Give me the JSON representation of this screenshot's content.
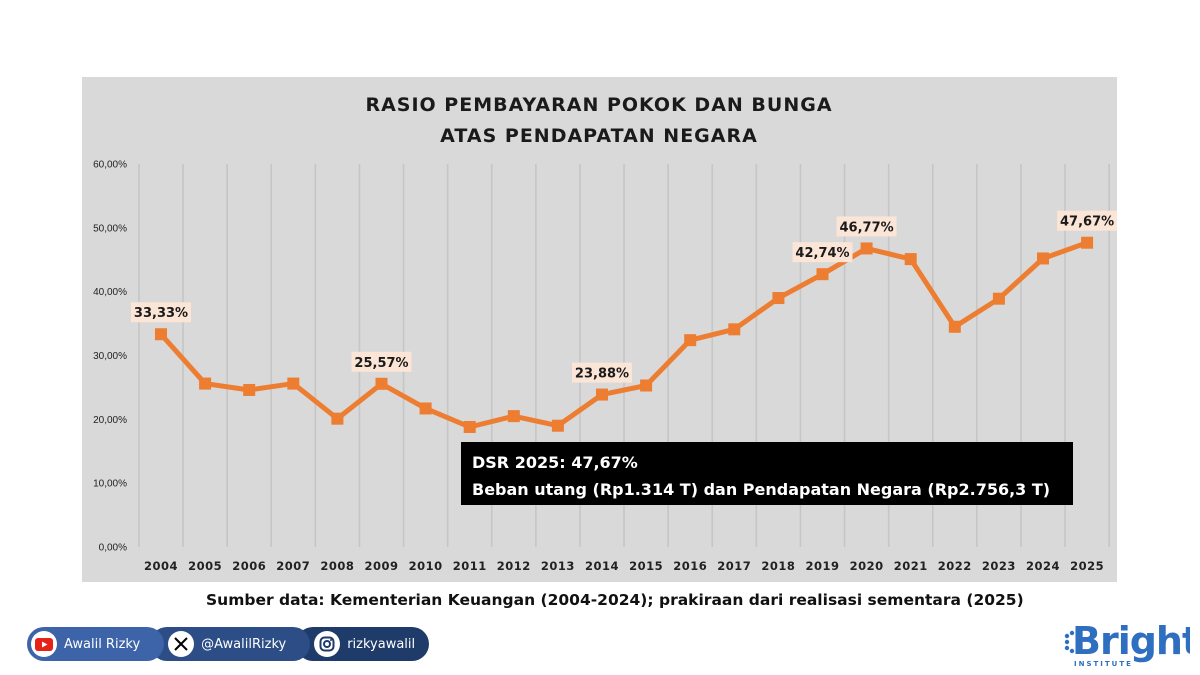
{
  "chart_data": {
    "type": "line",
    "title_lines": [
      "RASIO PEMBAYARAN POKOK DAN BUNGA",
      "ATAS PENDAPATAN NEGARA"
    ],
    "categories": [
      "2004",
      "2005",
      "2006",
      "2007",
      "2008",
      "2009",
      "2010",
      "2011",
      "2012",
      "2013",
      "2014",
      "2015",
      "2016",
      "2017",
      "2018",
      "2019",
      "2020",
      "2021",
      "2022",
      "2023",
      "2024",
      "2025"
    ],
    "values": [
      33.33,
      25.6,
      24.6,
      25.6,
      20.1,
      25.57,
      21.7,
      18.8,
      20.5,
      19.0,
      23.88,
      25.3,
      32.4,
      34.1,
      39.0,
      42.74,
      46.77,
      45.1,
      34.5,
      38.9,
      45.2,
      47.67
    ],
    "data_labels": [
      {
        "category": "2004",
        "text": "33,33%"
      },
      {
        "category": "2009",
        "text": "25,57%"
      },
      {
        "category": "2014",
        "text": "23,88%"
      },
      {
        "category": "2019",
        "text": "42,74%"
      },
      {
        "category": "2020",
        "text": "46,77%"
      },
      {
        "category": "2025",
        "text": "47,67%"
      }
    ],
    "yticks": [
      "0,00%",
      "10,00%",
      "20,00%",
      "30,00%",
      "40,00%",
      "50,00%",
      "60,00%"
    ],
    "ylim": [
      0,
      60
    ],
    "grid": "vertical",
    "line_color": "#ed7d31",
    "plot_background": "#d9d9d9",
    "annotation": {
      "line1": "DSR 2025: 47,67%",
      "line2": "Beban utang (Rp1.314 T) dan Pendapatan Negara (Rp2.756,3 T)"
    }
  },
  "source_note": "Sumber data: Kementerian Keuangan (2004-2024); prakiraan dari realisasi sementara (2025)",
  "social": {
    "youtube": {
      "label": "Awalil Rizky",
      "icon": "youtube-icon"
    },
    "x": {
      "label": "@AwalilRizky",
      "icon": "x-icon"
    },
    "instagram": {
      "label": "rizkyawalil",
      "icon": "instagram-icon"
    }
  },
  "brand": {
    "name": "Bright",
    "sub": "INSTITUTE",
    "color": "#2e6fc0"
  }
}
